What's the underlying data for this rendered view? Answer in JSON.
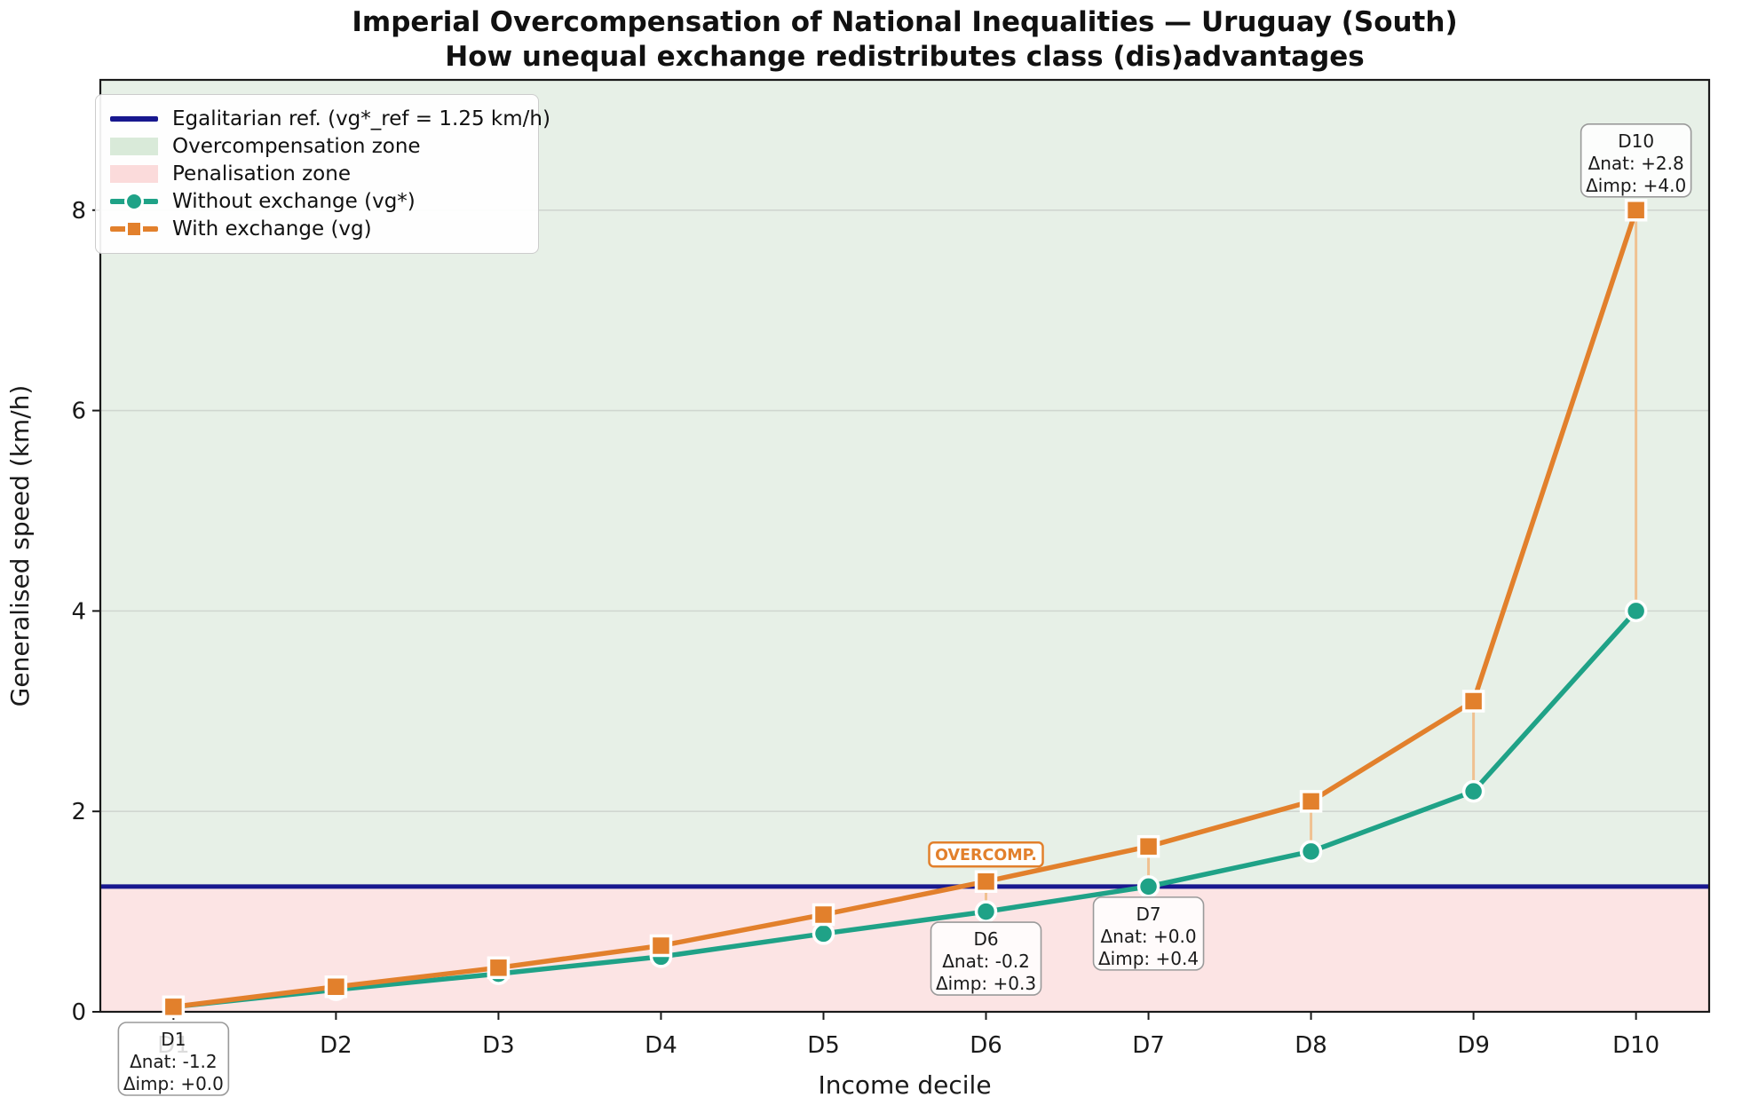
{
  "chart_data": {
    "type": "line",
    "title": "Imperial Overcompensation of National Inequalities — Uruguay (South)",
    "subtitle": "How unequal exchange redistributes class (dis)advantages",
    "xlabel": "Income decile",
    "ylabel": "Generalised speed (km/h)",
    "categories": [
      "D1",
      "D2",
      "D3",
      "D4",
      "D5",
      "D6",
      "D7",
      "D8",
      "D9",
      "D10"
    ],
    "yticks": [
      0,
      2,
      4,
      6,
      8
    ],
    "ylim": [
      0,
      9.3
    ],
    "grid": "horizontal-only",
    "legend_position": "upper-left",
    "series": [
      {
        "name": "Without exchange (vg*)",
        "marker": "circle",
        "color": "#1fa287",
        "values": [
          0.05,
          0.22,
          0.38,
          0.55,
          0.78,
          1.0,
          1.25,
          1.6,
          2.2,
          4.0
        ]
      },
      {
        "name": "With exchange (vg)",
        "marker": "square",
        "color": "#e2802c",
        "values": [
          0.05,
          0.25,
          0.44,
          0.66,
          0.97,
          1.3,
          1.65,
          2.1,
          3.1,
          8.0
        ]
      }
    ],
    "reference": {
      "label": "Egalitarian ref. (vg*_ref = 1.25 km/h)",
      "value": 1.25,
      "color": "#18188f"
    },
    "zones": [
      {
        "label": "Overcompensation zone",
        "from": 1.25,
        "to": 9.3,
        "fill": "#e7f0e7",
        "legend_patch": "#d9ead9"
      },
      {
        "label": "Penalisation zone",
        "from": 0,
        "to": 1.25,
        "fill": "#fce4e4",
        "legend_patch": "#fbdbdb"
      }
    ],
    "connector_color": "#f0c191",
    "grid_color": "#b0b0b0",
    "annotations": [
      {
        "category": "D1",
        "lines": [
          "D1",
          "Δnat: -1.2",
          "Δimp: +0.0"
        ],
        "placement": "below-axis"
      },
      {
        "category": "D6",
        "lines": [
          "D6",
          "Δnat: -0.2",
          "Δimp: +0.3"
        ],
        "placement": "below-marker"
      },
      {
        "category": "D7",
        "lines": [
          "D7",
          "Δnat: +0.0",
          "Δimp: +0.4"
        ],
        "placement": "below-marker"
      },
      {
        "category": "D10",
        "lines": [
          "D10",
          "Δnat: +2.8",
          "Δimp: +4.0"
        ],
        "placement": "above-marker"
      }
    ],
    "badge": {
      "text": "OVERCOMP.",
      "category": "D6",
      "color": "#e2802c",
      "y_value": 1.57
    }
  }
}
